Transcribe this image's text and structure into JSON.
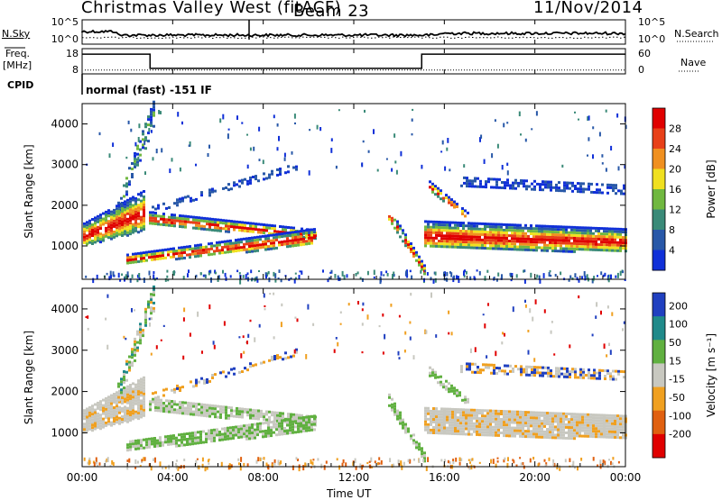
{
  "header": {
    "station": "Christmas Valley West (fitACF)",
    "beam": "Beam 23",
    "date": "11/Nov/2014"
  },
  "side_labels": {
    "nsky": "N.Sky",
    "freq_line1": "Freq.",
    "freq_line2": "[MHz]",
    "cpid": "CPID",
    "nsearch": "N.Search",
    "nave": "Nave"
  },
  "cpid_text": "normal (fast) -151 IF",
  "chart_data": [
    {
      "type": "line",
      "name": "noise",
      "yticks_left": [
        "10^5",
        "10^0"
      ],
      "yticks_right": [
        "10^5",
        "10^0"
      ]
    },
    {
      "type": "line",
      "name": "frequency-nave",
      "yticks_left": [
        "18",
        "8"
      ],
      "yticks_right": [
        "60",
        "0"
      ],
      "freq_steps": [
        {
          "t0": 0.0,
          "t1": 3.0,
          "level": 0.78
        },
        {
          "t0": 3.0,
          "t1": 15.0,
          "level": 0.22
        },
        {
          "t0": 15.0,
          "t1": 24.0,
          "level": 0.78
        }
      ]
    },
    {
      "type": "heatmap",
      "name": "power",
      "ylabel": "Slant Range [km]",
      "yticks": [
        "4000",
        "3000",
        "2000",
        "1000"
      ],
      "ytick_values": [
        4000,
        3000,
        2000,
        1000
      ],
      "ylim": [
        180,
        4500
      ],
      "xlim": [
        0,
        24
      ],
      "colorbar_label": "Power [dB]",
      "colorbar_ticks": [
        "28",
        "24",
        "20",
        "16",
        "12",
        "8",
        "4"
      ],
      "colors": [
        "#1030d8",
        "#2858a8",
        "#3a8a78",
        "#70b840",
        "#f0e020",
        "#f09020",
        "#e84018",
        "#e00000"
      ]
    },
    {
      "type": "heatmap",
      "name": "velocity",
      "ylabel": "Slant Range [km]",
      "yticks": [
        "4000",
        "3000",
        "2000",
        "1000"
      ],
      "ytick_values": [
        4000,
        3000,
        2000,
        1000
      ],
      "ylim": [
        180,
        4500
      ],
      "xlim": [
        0,
        24
      ],
      "colorbar_label": "Velocity [m s⁻¹]",
      "colorbar_ticks": [
        "200",
        "100",
        "50",
        "15",
        "-15",
        "-50",
        "-100",
        "-200"
      ],
      "colors": [
        "#2040c0",
        "#208a8a",
        "#60b040",
        "#c8c8c0",
        "#f0a020",
        "#e06010",
        "#e00000"
      ]
    }
  ],
  "xaxis": {
    "ticks": [
      "00:00",
      "04:00",
      "08:00",
      "12:00",
      "16:00",
      "20:00",
      "00:00"
    ],
    "tick_hours": [
      0,
      4,
      8,
      12,
      16,
      20,
      24
    ],
    "label": "Time UT"
  }
}
